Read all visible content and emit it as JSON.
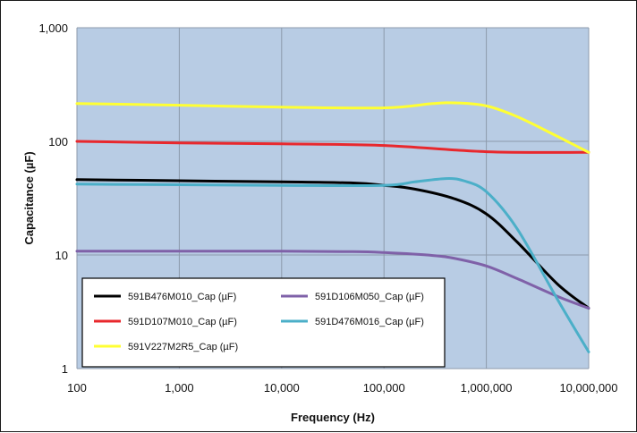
{
  "chart_data": {
    "type": "line",
    "title": "",
    "xlabel": "Frequency (Hz)",
    "ylabel": "Capacitance (µF)",
    "x_scale": "log",
    "y_scale": "log",
    "xlim": [
      100,
      10000000
    ],
    "ylim": [
      1,
      1000
    ],
    "grid": true,
    "legend_position": "bottom-left",
    "plot_background": "#b8cce4",
    "x_ticks": [
      100,
      1000,
      10000,
      100000,
      1000000,
      10000000
    ],
    "x_tick_labels": [
      "100",
      "1,000",
      "10,000",
      "100,000",
      "1,000,000",
      "10,000,000"
    ],
    "y_ticks": [
      1,
      10,
      100,
      1000
    ],
    "y_tick_labels": [
      "1",
      "10",
      "100",
      "1,000"
    ],
    "series": [
      {
        "name": "591B476M010_Cap (µF)",
        "color": "#000000",
        "x": [
          100,
          1000,
          10000,
          50000,
          100000,
          200000,
          500000,
          1000000,
          2000000,
          5000000,
          10000000
        ],
        "y": [
          46,
          45,
          44,
          43,
          41,
          38,
          31,
          23,
          13,
          5.5,
          3.4
        ]
      },
      {
        "name": "591D106M050_Cap (µF)",
        "color": "#7f61a8",
        "x": [
          100,
          1000,
          10000,
          50000,
          100000,
          300000,
          500000,
          1000000,
          2000000,
          5000000,
          10000000
        ],
        "y": [
          10.8,
          10.8,
          10.8,
          10.7,
          10.5,
          9.9,
          9.3,
          8.0,
          6.2,
          4.3,
          3.4
        ]
      },
      {
        "name": "591D107M010_Cap (µF)",
        "color": "#e8282d",
        "x": [
          100,
          1000,
          10000,
          100000,
          1000000,
          10000000
        ],
        "y": [
          100,
          97,
          95,
          92,
          81,
          80
        ]
      },
      {
        "name": "591D476M016_Cap (µF)",
        "color": "#4bafc8",
        "x": [
          100,
          1000,
          10000,
          100000,
          200000,
          400000,
          600000,
          1000000,
          2000000,
          5000000,
          10000000
        ],
        "y": [
          42,
          41.5,
          41,
          41,
          44,
          47,
          45,
          36,
          17,
          4.0,
          1.4
        ]
      },
      {
        "name": "591V227M2R5_Cap (µF)",
        "color": "#ffff33",
        "x": [
          100,
          1000,
          10000,
          100000,
          300000,
          500000,
          1000000,
          2000000,
          5000000,
          10000000
        ],
        "y": [
          215,
          208,
          200,
          197,
          215,
          218,
          205,
          165,
          110,
          80
        ]
      }
    ]
  }
}
